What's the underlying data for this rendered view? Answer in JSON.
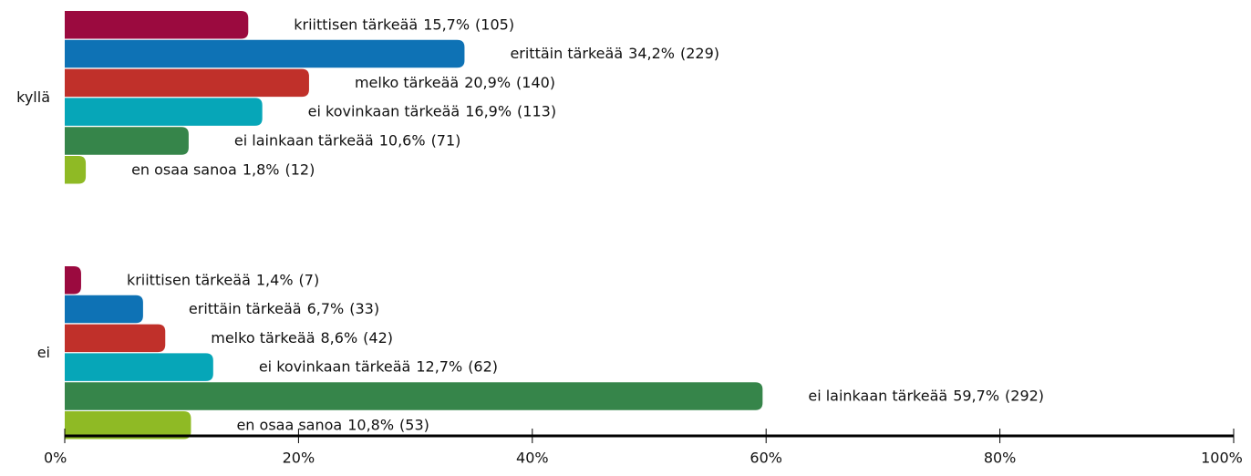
{
  "chart_data": {
    "type": "bar",
    "orientation": "horizontal",
    "categories": [
      "kyllä",
      "ei"
    ],
    "series": [
      {
        "name": "kriittisen tärkeää",
        "color": "#9b0a3f",
        "values": [
          15.7,
          1.4
        ],
        "value_labels": [
          "15,7%",
          "1,4%"
        ],
        "counts": [
          "(105)",
          "(7)"
        ]
      },
      {
        "name": "erittäin tärkeää",
        "color": "#0e72b5",
        "values": [
          34.2,
          6.7
        ],
        "value_labels": [
          "34,2%",
          "6,7%"
        ],
        "counts": [
          "(229)",
          "(33)"
        ]
      },
      {
        "name": "melko tärkeää",
        "color": "#c0302a",
        "values": [
          20.9,
          8.6
        ],
        "value_labels": [
          "20,9%",
          "8,6%"
        ],
        "counts": [
          "(140)",
          "(42)"
        ]
      },
      {
        "name": "ei kovinkaan tärkeää",
        "color": "#06a6b8",
        "values": [
          16.9,
          12.7
        ],
        "value_labels": [
          "16,9%",
          "12,7%"
        ],
        "counts": [
          "(113)",
          "(62)"
        ]
      },
      {
        "name": "ei lainkaan tärkeää",
        "color": "#36854a",
        "values": [
          10.6,
          59.7
        ],
        "value_labels": [
          "10,6%",
          "59,7%"
        ],
        "counts": [
          "(71)",
          "(292)"
        ]
      },
      {
        "name": "en osaa sanoa",
        "color": "#8fba25",
        "values": [
          1.8,
          10.8
        ],
        "value_labels": [
          "1,8%",
          "10,8%"
        ],
        "counts": [
          "(12)",
          "(53)"
        ]
      }
    ],
    "xlim": [
      0,
      100
    ],
    "xticks": [
      {
        "value": 0,
        "label": "0%"
      },
      {
        "value": 20,
        "label": "20%"
      },
      {
        "value": 40,
        "label": "40%"
      },
      {
        "value": 60,
        "label": "60%"
      },
      {
        "value": 80,
        "label": "80%"
      },
      {
        "value": 100,
        "label": "100%"
      }
    ]
  }
}
